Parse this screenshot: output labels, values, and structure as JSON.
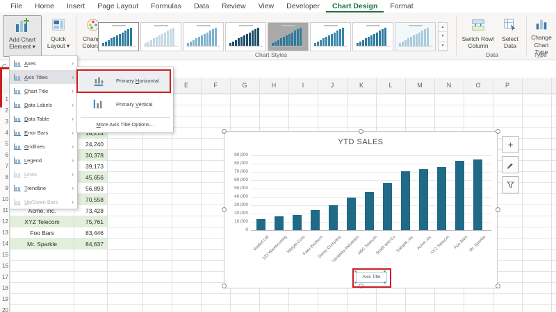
{
  "tabs": [
    {
      "label": "File"
    },
    {
      "label": "Home"
    },
    {
      "label": "Insert"
    },
    {
      "label": "Page Layout"
    },
    {
      "label": "Formulas"
    },
    {
      "label": "Data"
    },
    {
      "label": "Review"
    },
    {
      "label": "View"
    },
    {
      "label": "Developer"
    },
    {
      "label": "Chart Design",
      "active": true
    },
    {
      "label": "Format"
    }
  ],
  "glyphs": {
    "caret_down": "▾",
    "submenu_arrow": "›",
    "scroll_up": "▲",
    "scroll_down": "▼",
    "scroll_more": "▼",
    "plus": "+"
  },
  "ribbon": {
    "buttons": {
      "add_chart_element": {
        "line1": "Add Chart",
        "line2": "Element"
      },
      "quick_layout": {
        "line1": "Quick",
        "line2": "Layout"
      },
      "change_colors": {
        "line1": "Change",
        "line2": "Colors"
      },
      "switch_row_column": {
        "line1": "Switch Row/",
        "line2": "Column"
      },
      "select_data": {
        "line1": "Select",
        "line2": "Data"
      },
      "change_chart_type": {
        "line1": "Change",
        "line2": "Chart Type"
      }
    },
    "groups": {
      "chart_styles": "Chart Styles",
      "data": "Data",
      "type": "Type"
    },
    "gallery_styles": [
      {
        "bg": "#ffffff",
        "bar": "#2f7b9d",
        "selected": true
      },
      {
        "bg": "#ffffff",
        "bar": "#c3d9e6",
        "selected": false
      },
      {
        "bg": "#ffffff",
        "bar": "#7fb2cc",
        "selected": false
      },
      {
        "bg": "#ffffff",
        "bar": "#1d4f6b",
        "selected": false
      },
      {
        "bg": "#a9a9a9",
        "bar": "#2f7b9d",
        "selected": false
      },
      {
        "bg": "#ffffff",
        "bar": "#3a86ab",
        "selected": false
      },
      {
        "bg": "#ffffff",
        "bar": "#2f7b9d",
        "selected": false
      },
      {
        "bg": "#f2f7fa",
        "bar": "#aacbdd",
        "selected": false
      }
    ]
  },
  "menu": {
    "items": [
      {
        "label": "Axes",
        "icon": "axes-icon",
        "access_index": 0,
        "disabled": false,
        "highlighted": false
      },
      {
        "label": "Axis Titles",
        "icon": "axis-titles-icon",
        "access_index": 0,
        "disabled": false,
        "highlighted": true
      },
      {
        "label": "Chart Title",
        "icon": "chart-title-icon",
        "access_index": 0,
        "disabled": false,
        "highlighted": false
      },
      {
        "label": "Data Labels",
        "icon": "data-labels-icon",
        "access_index": 0,
        "disabled": false,
        "highlighted": false
      },
      {
        "label": "Data Table",
        "icon": "data-table-icon",
        "access_index": 0,
        "disabled": false,
        "highlighted": false
      },
      {
        "label": "Error Bars",
        "icon": "error-bars-icon",
        "access_index": 0,
        "disabled": false,
        "highlighted": false
      },
      {
        "label": "Gridlines",
        "icon": "gridlines-icon",
        "access_index": 0,
        "disabled": false,
        "highlighted": false
      },
      {
        "label": "Legend",
        "icon": "legend-icon",
        "access_index": 0,
        "disabled": false,
        "highlighted": false
      },
      {
        "label": "Lines",
        "icon": "lines-icon",
        "access_index": 0,
        "disabled": true,
        "highlighted": false
      },
      {
        "label": "Trendline",
        "icon": "trendline-icon",
        "access_index": 0,
        "disabled": false,
        "highlighted": false
      },
      {
        "label": "Up/Down Bars",
        "icon": "updown-bars-icon",
        "access_index": 0,
        "disabled": true,
        "highlighted": false
      }
    ]
  },
  "submenu": {
    "items": [
      {
        "label": "Primary Horizontal",
        "icon": "primary-horizontal-icon",
        "access_index": 8,
        "highlighted": true
      },
      {
        "label": "Primary Vertical",
        "icon": "primary-vertical-icon",
        "access_index": 8,
        "highlighted": false
      }
    ],
    "footer": {
      "label": "More Axis Title Options...",
      "access_index": 0
    }
  },
  "sheet": {
    "name_box_partial": "C",
    "column_headers": [
      "E",
      "F",
      "G",
      "H",
      "I",
      "J",
      "K",
      "L",
      "M",
      "N",
      "O",
      "P"
    ],
    "row_numbers": [
      1,
      2,
      3,
      4,
      5,
      6,
      7,
      8,
      9,
      10,
      11,
      12,
      13,
      14,
      15,
      16,
      17,
      18,
      19,
      20
    ],
    "visible_cells": [
      {
        "row": 4,
        "name": "",
        "value": "18,214",
        "shaded": true
      },
      {
        "row": 5,
        "name": "",
        "value": "24,240",
        "shaded": false
      },
      {
        "row": 6,
        "name": "",
        "value": "30,378",
        "shaded": true
      },
      {
        "row": 7,
        "name": "",
        "value": "39,173",
        "shaded": false
      },
      {
        "row": 8,
        "name": "",
        "value": "45,656",
        "shaded": true
      },
      {
        "row": 9,
        "name": "",
        "value": "56,893",
        "shaded": false
      },
      {
        "row": 10,
        "name": "",
        "value": "70,558",
        "shaded": true
      },
      {
        "row": 11,
        "name": "Acme, inc.",
        "value": "73,428",
        "shaded": false
      },
      {
        "row": 12,
        "name": "XYZ Telecom",
        "value": "75,761",
        "shaded": true
      },
      {
        "row": 13,
        "name": "Foo Bars",
        "value": "83,446",
        "shaded": false
      },
      {
        "row": 14,
        "name": "Mr. Sparkle",
        "value": "84,637",
        "shaded": true
      }
    ]
  },
  "chart_data": {
    "type": "bar",
    "title": "YTD SALES",
    "categories": [
      "Voided Ltd",
      "123 Warehousing",
      "Widget Corp",
      "Fake Brothers",
      "Demo Company",
      "Vandelay Industries",
      "ABC Telecom",
      "Smith and Co",
      "Sample, inc",
      "Acme, inc",
      "XYZ Telecom",
      "Foo Bars",
      "Mr. Sparkle"
    ],
    "values": [
      13500,
      17000,
      18214,
      24240,
      30378,
      39173,
      45656,
      56893,
      70558,
      73428,
      75761,
      83446,
      84637
    ],
    "ylim": [
      0,
      90000
    ],
    "ytick_interval": 10000,
    "ytick_labels": [
      "90,000",
      "80,000",
      "70,000",
      "60,000",
      "50,000",
      "40,000",
      "30,000",
      "20,000",
      "10,000",
      "0"
    ],
    "grid": true,
    "legend": "none",
    "bar_color": "#206a87",
    "axis_title_placeholder": "Axis Title"
  },
  "colors": {
    "accent_green": "#1e7145",
    "annotation_red": "#cf1d1d",
    "bar_teal": "#206a87",
    "cell_green": "#e2efda",
    "menu_highlight": "#dfe1e4"
  }
}
